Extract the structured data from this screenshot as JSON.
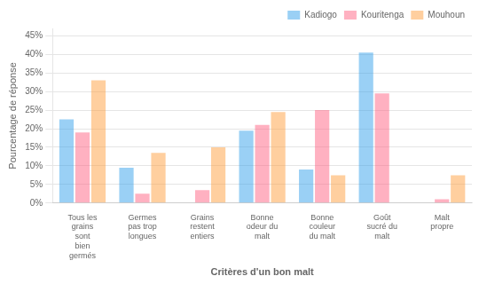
{
  "chart_data": {
    "type": "bar",
    "categories": [
      "Tous les\ngrains\nsont\nbien\ngermés",
      "Germes\npas trop\nlongues",
      "Grains\nrestent\nentiers",
      "Bonne\nodeur du\nmalt",
      "Bonne\ncouleur\ndu malt",
      "Goût\nsucré du\nmalt",
      "Malt\npropre"
    ],
    "series": [
      {
        "name": "Kadiogo",
        "values": [
          22.5,
          9.5,
          0,
          19.5,
          9.0,
          40.5,
          0
        ]
      },
      {
        "name": "Kouritenga",
        "values": [
          19.0,
          2.5,
          3.5,
          21.0,
          25.0,
          29.5,
          1.0
        ]
      },
      {
        "name": "Mouhoun",
        "values": [
          33.0,
          13.5,
          15.0,
          24.5,
          7.5,
          0,
          7.5
        ]
      }
    ],
    "xlabel": "Critères d'un bon malt",
    "ylabel": "Pourcentage de réponse",
    "ylim": [
      0,
      47
    ],
    "yticks": [
      {
        "value": 0,
        "label": "0%"
      },
      {
        "value": 5,
        "label": "5%"
      },
      {
        "value": 10,
        "label": "10%"
      },
      {
        "value": 15,
        "label": "15%"
      },
      {
        "value": 20,
        "label": "20%"
      },
      {
        "value": 25,
        "label": "25%"
      },
      {
        "value": 30,
        "label": "30%"
      },
      {
        "value": 35,
        "label": "35%"
      },
      {
        "value": 40,
        "label": "40%"
      },
      {
        "value": 45,
        "label": "45%"
      }
    ],
    "grid": true,
    "legend": "upper right"
  }
}
